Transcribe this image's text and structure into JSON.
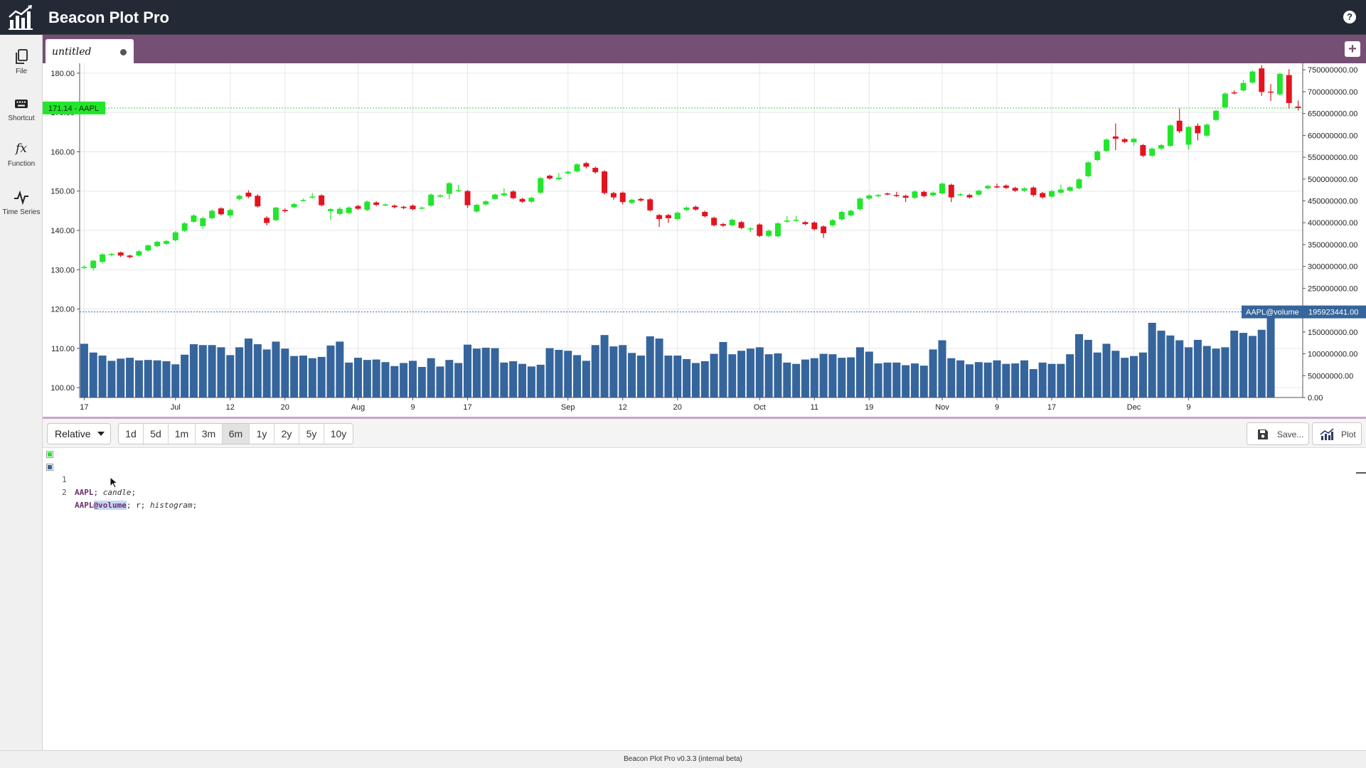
{
  "app": {
    "title": "Beacon Plot Pro",
    "version": "Beacon Plot Pro v0.3.3 (internal beta)"
  },
  "sidebar": {
    "items": [
      {
        "label": "File",
        "icon": "file-copy-icon"
      },
      {
        "label": "Shortcut",
        "icon": "keyboard-icon"
      },
      {
        "label": "Function",
        "icon": "function-fx-icon"
      },
      {
        "label": "Time Series",
        "icon": "time-series-icon"
      }
    ]
  },
  "tabs": [
    {
      "label": "untitled",
      "modified": true
    }
  ],
  "toolbar": {
    "mode": "Relative",
    "ranges": [
      "1d",
      "5d",
      "1m",
      "3m",
      "6m",
      "1y",
      "2y",
      "5y",
      "10y"
    ],
    "active_range": "6m",
    "save_label": "Save...",
    "plot_label": "Plot"
  },
  "editor": {
    "lines": [
      {
        "number": "1",
        "symbol": "AAPL",
        "rest": "; ",
        "option": "candle",
        "end": ";",
        "color": "#22e52c"
      },
      {
        "number": "2",
        "symbol": "AAPL",
        "field": "@volume",
        "rest": "; r; ",
        "option": "histogram",
        "end": ";",
        "color": "#35659c"
      }
    ]
  },
  "colors": {
    "up": "#22e52c",
    "down": "#e3131f",
    "volume": "#35659c",
    "tabbar": "#764f75",
    "titlebar": "#232a36"
  },
  "chart_data": {
    "type": "candlestick",
    "series": [
      {
        "name": "AAPL",
        "kind": "candle"
      },
      {
        "name": "AAPL@volume",
        "kind": "histogram",
        "axis": "right"
      }
    ],
    "left_axis": {
      "ticks": [
        "180.00",
        "170.00",
        "160.00",
        "150.00",
        "140.00",
        "130.00",
        "120.00",
        "110.00",
        "100.00"
      ],
      "values": [
        180,
        170,
        160,
        150,
        140,
        130,
        120,
        110,
        100
      ],
      "range": [
        97.5,
        182.5
      ]
    },
    "right_axis": {
      "ticks": [
        "750000000.00",
        "700000000.00",
        "650000000.00",
        "600000000.00",
        "550000000.00",
        "500000000.00",
        "450000000.00",
        "400000000.00",
        "350000000.00",
        "300000000.00",
        "250000000.00",
        "200000000.00",
        "150000000.00",
        "100000000.00",
        "50000000.00",
        "0.00"
      ],
      "range": [
        0,
        765000000
      ]
    },
    "x_ticks": [
      "17",
      "Jul",
      "12",
      "20",
      "Aug",
      "9",
      "17",
      "Sep",
      "12",
      "20",
      "Oct",
      "11",
      "19",
      "Nov",
      "9",
      "17",
      "Dec",
      "9"
    ],
    "x_tick_index": [
      0,
      10,
      16,
      22,
      30,
      36,
      42,
      53,
      59,
      65,
      74,
      80,
      86,
      94,
      100,
      106,
      115,
      121
    ],
    "last_price": {
      "value": 171.14,
      "label": "171.14 - AAPL"
    },
    "last_volume": {
      "value": 195923441,
      "label": "AAPL@volume",
      "value_label": "195923441.00"
    },
    "candles": [
      [
        130.7,
        130.7,
        130.2,
        131.1
      ],
      [
        130.4,
        132.3,
        129.8,
        132.5
      ],
      [
        132.0,
        133.9,
        131.6,
        134.2
      ],
      [
        133.8,
        134.0,
        133.4,
        134.3
      ],
      [
        134.4,
        133.6,
        133.2,
        134.6
      ],
      [
        133.6,
        133.2,
        132.9,
        133.8
      ],
      [
        133.6,
        134.7,
        133.3,
        135.0
      ],
      [
        134.9,
        136.2,
        134.6,
        136.4
      ],
      [
        136.0,
        137.1,
        135.7,
        137.4
      ],
      [
        136.6,
        137.3,
        136.3,
        137.6
      ],
      [
        137.5,
        139.5,
        137.2,
        139.8
      ],
      [
        139.9,
        141.8,
        139.6,
        142.1
      ],
      [
        142.2,
        143.8,
        141.9,
        144.1
      ],
      [
        141.1,
        143.1,
        140.4,
        143.5
      ],
      [
        143.1,
        145.0,
        142.8,
        145.3
      ],
      [
        145.6,
        144.1,
        143.8,
        145.9
      ],
      [
        143.8,
        145.2,
        143.2,
        145.5
      ],
      [
        148.0,
        148.8,
        147.6,
        149.1
      ],
      [
        149.6,
        148.6,
        148.2,
        150.2
      ],
      [
        148.8,
        146.1,
        145.8,
        149.2
      ],
      [
        143.2,
        141.9,
        141.3,
        143.6
      ],
      [
        142.6,
        145.8,
        142.3,
        146.0
      ],
      [
        145.2,
        144.9,
        144.5,
        145.6
      ],
      [
        145.9,
        146.7,
        145.6,
        147.0
      ],
      [
        147.7,
        147.7,
        147.3,
        148.1
      ],
      [
        148.4,
        148.6,
        148.1,
        149.5
      ],
      [
        148.9,
        146.4,
        146.1,
        149.2
      ],
      [
        144.9,
        145.4,
        142.6,
        145.7
      ],
      [
        144.2,
        145.5,
        143.9,
        145.9
      ],
      [
        144.4,
        145.8,
        144.1,
        146.1
      ],
      [
        146.2,
        145.5,
        145.2,
        146.5
      ],
      [
        145.2,
        147.3,
        144.9,
        147.6
      ],
      [
        147.1,
        146.5,
        146.2,
        147.4
      ],
      [
        146.4,
        146.6,
        146.1,
        146.9
      ],
      [
        146.3,
        145.9,
        145.6,
        146.6
      ],
      [
        146.0,
        145.7,
        145.4,
        146.3
      ],
      [
        146.3,
        145.4,
        145.1,
        146.6
      ],
      [
        145.7,
        145.8,
        145.4,
        146.1
      ],
      [
        146.3,
        149.1,
        146.0,
        149.4
      ],
      [
        148.6,
        148.9,
        148.3,
        149.2
      ],
      [
        149.3,
        152.0,
        147.9,
        152.3
      ],
      [
        150.0,
        150.2,
        149.7,
        151.6
      ],
      [
        150.0,
        146.4,
        145.7,
        150.3
      ],
      [
        144.8,
        146.5,
        144.5,
        146.8
      ],
      [
        146.6,
        147.4,
        146.3,
        147.7
      ],
      [
        148.0,
        149.1,
        147.7,
        149.4
      ],
      [
        148.9,
        149.4,
        148.6,
        150.7
      ],
      [
        149.9,
        148.2,
        147.9,
        150.2
      ],
      [
        148.0,
        147.3,
        147.0,
        148.3
      ],
      [
        147.3,
        148.3,
        147.0,
        148.6
      ],
      [
        149.6,
        153.3,
        149.3,
        153.6
      ],
      [
        153.9,
        153.2,
        152.9,
        154.2
      ],
      [
        153.0,
        153.4,
        152.7,
        154.6
      ],
      [
        154.5,
        154.9,
        154.2,
        155.2
      ],
      [
        155.0,
        156.8,
        154.7,
        157.1
      ],
      [
        157.1,
        156.2,
        155.8,
        157.4
      ],
      [
        155.9,
        154.8,
        154.4,
        156.2
      ],
      [
        155.0,
        149.5,
        149.1,
        155.3
      ],
      [
        149.5,
        148.4,
        147.8,
        149.8
      ],
      [
        149.6,
        147.2,
        146.6,
        149.9
      ],
      [
        147.0,
        147.8,
        146.7,
        148.1
      ],
      [
        148.0,
        147.6,
        147.3,
        148.3
      ],
      [
        147.9,
        145.1,
        144.8,
        148.2
      ],
      [
        143.9,
        142.9,
        140.9,
        144.2
      ],
      [
        143.9,
        143.1,
        141.9,
        144.2
      ],
      [
        142.9,
        144.5,
        142.6,
        144.8
      ],
      [
        145.2,
        145.8,
        144.9,
        146.1
      ],
      [
        146.0,
        145.3,
        145.0,
        146.3
      ],
      [
        144.7,
        143.6,
        143.3,
        145.0
      ],
      [
        143.2,
        141.3,
        141.0,
        143.5
      ],
      [
        141.6,
        141.2,
        140.9,
        141.9
      ],
      [
        141.3,
        142.7,
        141.0,
        143.0
      ],
      [
        142.1,
        140.6,
        140.3,
        142.4
      ],
      [
        140.5,
        140.5,
        139.5,
        140.8
      ],
      [
        141.5,
        138.6,
        138.3,
        141.8
      ],
      [
        138.6,
        139.9,
        138.3,
        140.2
      ],
      [
        138.5,
        141.8,
        138.2,
        142.1
      ],
      [
        142.2,
        142.5,
        141.9,
        143.6
      ],
      [
        142.6,
        142.7,
        142.3,
        143.7
      ],
      [
        142.1,
        141.6,
        141.3,
        142.4
      ],
      [
        142.0,
        140.3,
        140.0,
        142.3
      ],
      [
        141.0,
        139.3,
        138.1,
        141.3
      ],
      [
        141.3,
        142.6,
        141.0,
        142.9
      ],
      [
        142.8,
        144.7,
        142.5,
        145.0
      ],
      [
        143.8,
        145.0,
        143.5,
        145.3
      ],
      [
        145.4,
        148.1,
        145.1,
        148.4
      ],
      [
        148.1,
        148.9,
        147.8,
        149.2
      ],
      [
        148.7,
        149.0,
        148.4,
        149.3
      ],
      [
        149.4,
        149.3,
        148.9,
        149.6
      ],
      [
        149.0,
        148.8,
        148.5,
        149.8
      ],
      [
        148.8,
        148.3,
        147.2,
        149.1
      ],
      [
        148.3,
        149.9,
        148.0,
        150.2
      ],
      [
        149.8,
        148.7,
        148.4,
        150.1
      ],
      [
        148.9,
        149.6,
        148.6,
        149.9
      ],
      [
        149.4,
        151.9,
        149.1,
        152.2
      ],
      [
        151.6,
        148.4,
        147.2,
        151.9
      ],
      [
        149.0,
        149.2,
        148.7,
        149.5
      ],
      [
        149.0,
        148.4,
        148.1,
        149.3
      ],
      [
        149.1,
        150.1,
        148.8,
        150.4
      ],
      [
        150.7,
        151.3,
        150.4,
        151.6
      ],
      [
        151.2,
        151.0,
        150.7,
        151.9
      ],
      [
        151.4,
        150.8,
        150.5,
        151.7
      ],
      [
        150.8,
        150.1,
        149.8,
        151.1
      ],
      [
        150.1,
        150.7,
        149.8,
        151.0
      ],
      [
        150.9,
        149.0,
        148.6,
        151.2
      ],
      [
        149.5,
        148.4,
        148.1,
        149.8
      ],
      [
        148.6,
        150.0,
        148.3,
        150.3
      ],
      [
        149.6,
        150.4,
        149.3,
        151.6
      ],
      [
        150.1,
        151.0,
        149.8,
        151.3
      ],
      [
        150.7,
        153.0,
        150.4,
        153.3
      ],
      [
        153.8,
        157.3,
        153.5,
        157.6
      ],
      [
        157.9,
        160.1,
        157.6,
        160.4
      ],
      [
        160.2,
        163.1,
        159.9,
        163.4
      ],
      [
        163.9,
        163.3,
        160.4,
        167.2
      ],
      [
        163.2,
        162.5,
        162.2,
        163.5
      ],
      [
        162.4,
        163.3,
        161.6,
        163.6
      ],
      [
        161.7,
        159.0,
        158.6,
        162.0
      ],
      [
        159.0,
        160.8,
        158.7,
        161.1
      ],
      [
        160.8,
        161.7,
        160.4,
        162.0
      ],
      [
        161.5,
        166.7,
        161.2,
        167.0
      ],
      [
        167.9,
        165.2,
        164.8,
        171.0
      ],
      [
        161.8,
        166.3,
        160.5,
        166.6
      ],
      [
        166.6,
        164.7,
        162.9,
        167.2
      ],
      [
        164.1,
        166.9,
        163.8,
        167.2
      ],
      [
        168.1,
        170.4,
        167.8,
        170.7
      ],
      [
        171.3,
        174.8,
        171.0,
        175.1
      ],
      [
        175.1,
        174.9,
        174.6,
        175.6
      ],
      [
        175.6,
        177.5,
        175.3,
        178.2
      ],
      [
        177.6,
        180.4,
        177.3,
        180.7
      ],
      [
        181.2,
        175.2,
        174.2,
        182.0
      ],
      [
        175.3,
        175.2,
        172.9,
        177.2
      ],
      [
        174.6,
        179.8,
        174.3,
        180.1
      ],
      [
        179.5,
        172.4,
        170.9,
        181.0
      ],
      [
        171.5,
        171.1,
        170.5,
        173.0
      ]
    ],
    "volumes": [
      123,
      103,
      96,
      84,
      89,
      91,
      85,
      86,
      85,
      83,
      76,
      98,
      122,
      120,
      120,
      115,
      97,
      115,
      135,
      122,
      110,
      128,
      112,
      95,
      96,
      90,
      93,
      119,
      128,
      80,
      91,
      86,
      87,
      81,
      72,
      79,
      84,
      70,
      90,
      71,
      86,
      79,
      121,
      112,
      114,
      113,
      80,
      83,
      77,
      71,
      75,
      113,
      109,
      107,
      97,
      84,
      120,
      143,
      117,
      120,
      102,
      96,
      140,
      135,
      96,
      96,
      88,
      79,
      83,
      100,
      127,
      99,
      107,
      112,
      115,
      99,
      101,
      80,
      77,
      87,
      90,
      100,
      99,
      91,
      92,
      115,
      105,
      78,
      80,
      80,
      74,
      78,
      73,
      110,
      131,
      90,
      85,
      76,
      81,
      80,
      85,
      77,
      78,
      85,
      65,
      80,
      77,
      77,
      99,
      145,
      132,
      103,
      123,
      107,
      91,
      95,
      103,
      171,
      153,
      142,
      131,
      115,
      132,
      118,
      112,
      115,
      153,
      148,
      141,
      155,
      196
    ]
  }
}
